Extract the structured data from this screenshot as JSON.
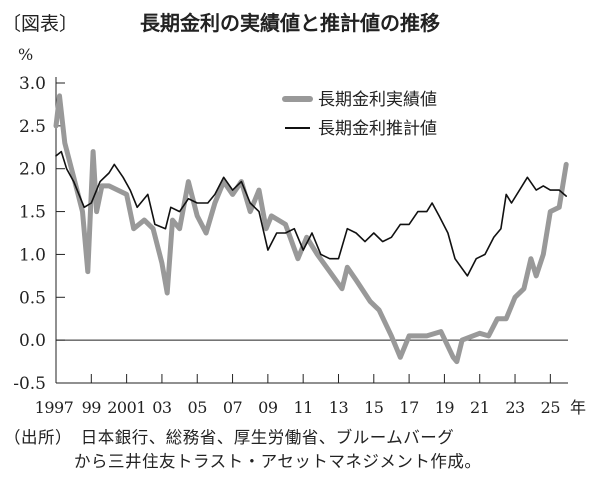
{
  "header": {
    "tag": "〔図表〕",
    "title": "長期金利の実績値と推計値の推移"
  },
  "source": {
    "line1": "（出所）　日本銀行、総務省、厚生労働省、ブルームバーグ",
    "line2": "から三井住友トラスト・アセットマネジメント作成。"
  },
  "chart_data": {
    "type": "line",
    "title": "長期金利の実績値と推計値の推移",
    "ylabel": "%",
    "xlabel": "年",
    "ylim": [
      -0.5,
      3.0
    ],
    "xlim": [
      1997,
      2026
    ],
    "yticks": [
      "3.0",
      "2.5",
      "2.0",
      "1.5",
      "1.0",
      "0.5",
      "0.0",
      "-0.5"
    ],
    "xticks": [
      {
        "year": 1997,
        "label": "1997"
      },
      {
        "year": 1999,
        "label": "99"
      },
      {
        "year": 2001,
        "label": "2001"
      },
      {
        "year": 2003,
        "label": "03"
      },
      {
        "year": 2005,
        "label": "05"
      },
      {
        "year": 2007,
        "label": "07"
      },
      {
        "year": 2009,
        "label": "09"
      },
      {
        "year": 2011,
        "label": "11"
      },
      {
        "year": 2013,
        "label": "13"
      },
      {
        "year": 2015,
        "label": "15"
      },
      {
        "year": 2017,
        "label": "17"
      },
      {
        "year": 2019,
        "label": "19"
      },
      {
        "year": 2021,
        "label": "21"
      },
      {
        "year": 2023,
        "label": "23"
      },
      {
        "year": 2025,
        "label": "25"
      }
    ],
    "grid": false,
    "legend_position": "top-right",
    "series": [
      {
        "name": "長期金利実績値",
        "color": "#999999",
        "x": [
          1997.0,
          1997.2,
          1997.5,
          1998.0,
          1998.5,
          1998.8,
          1999.1,
          1999.3,
          1999.6,
          2000.0,
          2000.5,
          2001.0,
          2001.4,
          2002.0,
          2002.5,
          2003.0,
          2003.3,
          2003.6,
          2004.0,
          2004.5,
          2005.0,
          2005.5,
          2006.0,
          2006.5,
          2007.0,
          2007.5,
          2008.0,
          2008.5,
          2008.9,
          2009.2,
          2010.0,
          2010.7,
          2011.2,
          2011.8,
          2012.5,
          2013.2,
          2013.5,
          2014.0,
          2014.8,
          2015.3,
          2016.0,
          2016.5,
          2017.0,
          2018.0,
          2018.8,
          2019.5,
          2019.7,
          2020.0,
          2021.0,
          2021.5,
          2022.0,
          2022.5,
          2023.0,
          2023.5,
          2023.9,
          2024.2,
          2024.6,
          2025.0,
          2025.5,
          2025.9
        ],
        "y": [
          2.5,
          2.85,
          2.3,
          1.9,
          1.5,
          0.8,
          2.2,
          1.5,
          1.8,
          1.8,
          1.75,
          1.7,
          1.3,
          1.4,
          1.3,
          0.9,
          0.55,
          1.4,
          1.3,
          1.85,
          1.45,
          1.25,
          1.6,
          1.85,
          1.7,
          1.85,
          1.5,
          1.75,
          1.3,
          1.45,
          1.35,
          0.95,
          1.2,
          1.0,
          0.8,
          0.6,
          0.85,
          0.7,
          0.45,
          0.35,
          0.05,
          -0.2,
          0.05,
          0.05,
          0.1,
          -0.2,
          -0.25,
          0.0,
          0.08,
          0.05,
          0.25,
          0.25,
          0.5,
          0.6,
          0.95,
          0.75,
          1.0,
          1.5,
          1.55,
          2.05
        ]
      },
      {
        "name": "長期金利推計値",
        "color": "#111111",
        "x": [
          1997.0,
          1997.3,
          1997.6,
          1998.0,
          1998.6,
          1999.0,
          1999.5,
          2000.0,
          2000.3,
          2000.8,
          2001.2,
          2001.6,
          2002.2,
          2002.6,
          2003.2,
          2003.5,
          2004.0,
          2004.5,
          2005.0,
          2005.6,
          2006.0,
          2006.5,
          2007.0,
          2007.5,
          2008.0,
          2008.5,
          2009.0,
          2009.5,
          2010.0,
          2010.5,
          2011.0,
          2011.5,
          2012.0,
          2012.5,
          2013.0,
          2013.5,
          2014.0,
          2014.5,
          2015.0,
          2015.5,
          2016.0,
          2016.5,
          2017.0,
          2017.5,
          2018.0,
          2018.3,
          2018.7,
          2019.2,
          2019.6,
          2020.3,
          2020.8,
          2021.3,
          2021.8,
          2022.2,
          2022.5,
          2022.8,
          2023.4,
          2023.7,
          2024.2,
          2024.6,
          2025.0,
          2025.5,
          2025.9
        ],
        "y": [
          2.15,
          2.2,
          2.0,
          1.85,
          1.55,
          1.6,
          1.85,
          1.95,
          2.05,
          1.9,
          1.75,
          1.55,
          1.7,
          1.35,
          1.3,
          1.55,
          1.5,
          1.65,
          1.6,
          1.6,
          1.7,
          1.9,
          1.75,
          1.85,
          1.6,
          1.5,
          1.05,
          1.25,
          1.25,
          1.3,
          1.05,
          1.25,
          1.0,
          0.95,
          0.95,
          1.3,
          1.25,
          1.15,
          1.25,
          1.15,
          1.2,
          1.35,
          1.35,
          1.5,
          1.5,
          1.6,
          1.45,
          1.25,
          0.95,
          0.75,
          0.95,
          1.0,
          1.2,
          1.3,
          1.7,
          1.6,
          1.8,
          1.9,
          1.75,
          1.8,
          1.75,
          1.75,
          1.68
        ]
      }
    ]
  }
}
